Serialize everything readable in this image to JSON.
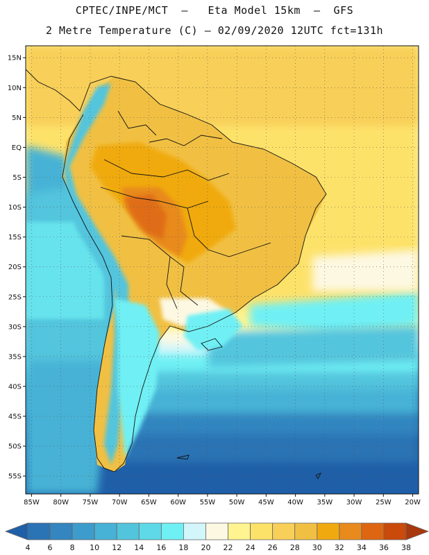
{
  "header": {
    "title": "CPTEC/INPE/MCT  –   Eta Model 15km  –  GFS",
    "subtitle": "2 Metre Temperature (C) – 02/09/2020 12UTC fct=131h"
  },
  "map": {
    "lon_range": [
      -86,
      -19
    ],
    "lat_range": [
      -58,
      17
    ],
    "lat_labels": [
      "15N",
      "10N",
      "5N",
      "EQ",
      "5S",
      "10S",
      "15S",
      "20S",
      "25S",
      "30S",
      "35S",
      "40S",
      "45S",
      "50S",
      "55S"
    ],
    "lat_values": [
      15,
      10,
      5,
      0,
      -5,
      -10,
      -15,
      -20,
      -25,
      -30,
      -35,
      -40,
      -45,
      -50,
      -55
    ],
    "lon_labels": [
      "85W",
      "80W",
      "75W",
      "70W",
      "65W",
      "60W",
      "55W",
      "50W",
      "45W",
      "40W",
      "35W",
      "30W",
      "25W",
      "20W"
    ],
    "lon_values": [
      -85,
      -80,
      -75,
      -70,
      -65,
      -60,
      -55,
      -50,
      -45,
      -40,
      -35,
      -30,
      -25,
      -20
    ],
    "grid": "dotted"
  },
  "colorbar": {
    "labels": [
      "4",
      "6",
      "8",
      "10",
      "12",
      "14",
      "16",
      "18",
      "20",
      "22",
      "24",
      "26",
      "28",
      "30",
      "32",
      "34",
      "36",
      "38"
    ],
    "colors": [
      "#1f5fa8",
      "#2a73b4",
      "#3386c0",
      "#3d9ccb",
      "#47b2d6",
      "#52c5dd",
      "#5fd9e8",
      "#6ff0f4",
      "#d3f6fb",
      "#fdf8e2",
      "#fff48f",
      "#fde26a",
      "#f8cf58",
      "#f1c043",
      "#f0aa10",
      "#e88a1c",
      "#de6612",
      "#c94a0a",
      "#a8380d"
    ]
  }
}
